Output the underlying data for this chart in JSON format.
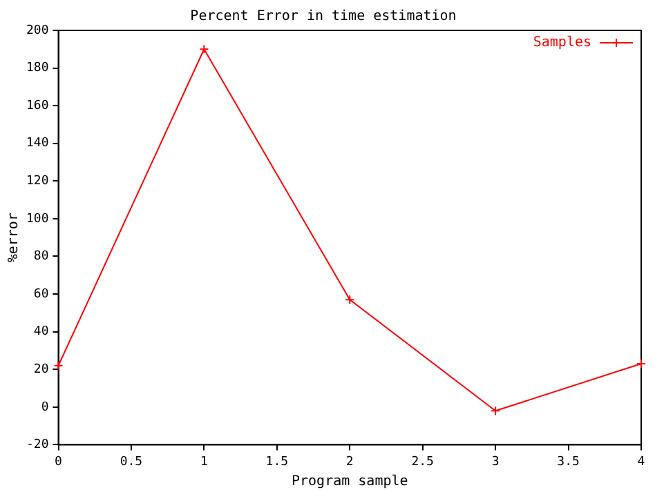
{
  "chart_data": {
    "type": "line",
    "title": "Percent Error in time estimation",
    "xlabel": "Program sample",
    "ylabel": "%error",
    "x": [
      0,
      1,
      2,
      3,
      4
    ],
    "series": [
      {
        "name": "Samples",
        "color": "#ff0000",
        "values": [
          22,
          190,
          57,
          -2,
          23
        ]
      }
    ],
    "xlim": [
      0,
      4
    ],
    "xticks": [
      0,
      0.5,
      1,
      1.5,
      2,
      2.5,
      3,
      3.5,
      4
    ],
    "ylim": [
      -20,
      200
    ],
    "yticks": [
      -20,
      0,
      20,
      40,
      60,
      80,
      100,
      120,
      140,
      160,
      180,
      200
    ],
    "grid": false,
    "legend": "top right",
    "marker": "cross",
    "line_style": "solid"
  }
}
